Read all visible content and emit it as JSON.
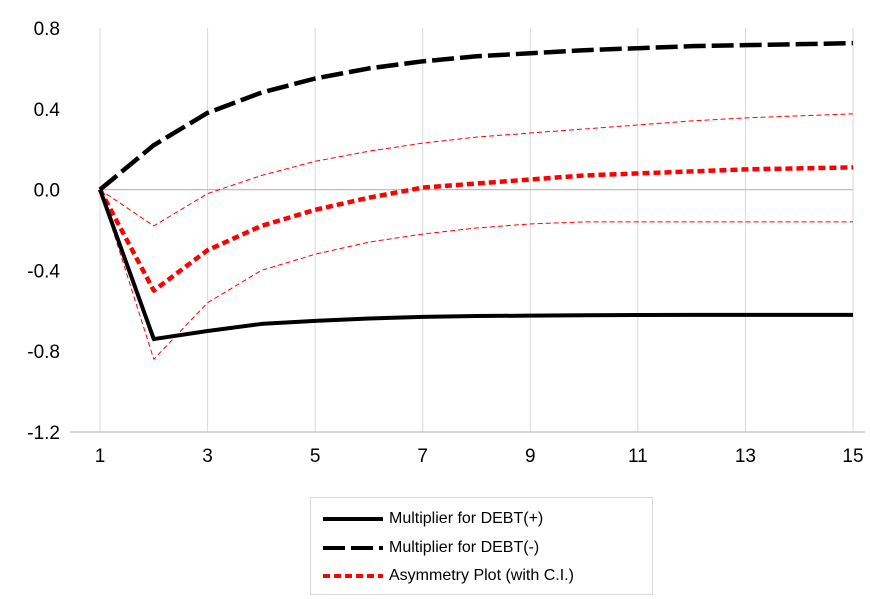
{
  "chart_data": {
    "type": "line",
    "x": [
      1,
      2,
      3,
      4,
      5,
      6,
      7,
      8,
      9,
      10,
      11,
      12,
      13,
      14,
      15
    ],
    "xticks": [
      "1",
      "3",
      "5",
      "7",
      "9",
      "11",
      "13",
      "15"
    ],
    "yticks": [
      "0.8",
      "0.4",
      "0.0",
      "-0.4",
      "-0.8",
      "-1.2"
    ],
    "ylim": [
      -1.2,
      0.8
    ],
    "xlim": [
      1,
      15
    ],
    "grid": "vertical",
    "legend_position": "bottom",
    "series": [
      {
        "name": "Multiplier for DEBT(+)",
        "style": "solid",
        "color": "#000000",
        "values": [
          0.0,
          -0.74,
          -0.7,
          -0.665,
          -0.65,
          -0.638,
          -0.63,
          -0.626,
          -0.624,
          -0.622,
          -0.621,
          -0.62,
          -0.62,
          -0.62,
          -0.62
        ]
      },
      {
        "name": "Multiplier for DEBT(-)",
        "style": "long-dash",
        "color": "#000000",
        "values": [
          0.0,
          0.22,
          0.38,
          0.48,
          0.55,
          0.6,
          0.635,
          0.66,
          0.675,
          0.69,
          0.7,
          0.71,
          0.715,
          0.72,
          0.725
        ]
      },
      {
        "name": "Asymmetry Plot (with C.I.)",
        "style": "dashed",
        "color": "#ff0000",
        "values": [
          0.0,
          -0.5,
          -0.3,
          -0.18,
          -0.1,
          -0.04,
          0.01,
          0.03,
          0.05,
          0.07,
          0.08,
          0.09,
          0.1,
          0.105,
          0.11
        ]
      },
      {
        "name": "",
        "style": "thin-dashed",
        "color": "#ff0000",
        "legend": false,
        "values": [
          0.0,
          -0.18,
          -0.02,
          0.07,
          0.14,
          0.19,
          0.23,
          0.26,
          0.28,
          0.3,
          0.32,
          0.34,
          0.355,
          0.365,
          0.375
        ]
      },
      {
        "name": "",
        "style": "thin-dashed",
        "color": "#ff0000",
        "legend": false,
        "values": [
          0.0,
          -0.84,
          -0.56,
          -0.4,
          -0.32,
          -0.26,
          -0.22,
          -0.19,
          -0.17,
          -0.16,
          -0.16,
          -0.16,
          -0.16,
          -0.16,
          -0.16
        ]
      }
    ]
  },
  "legend": {
    "items": [
      {
        "label": "Multiplier for DEBT(+)"
      },
      {
        "label": "Multiplier for DEBT(-)"
      },
      {
        "label": "Asymmetry Plot (with C.I.)"
      }
    ]
  }
}
